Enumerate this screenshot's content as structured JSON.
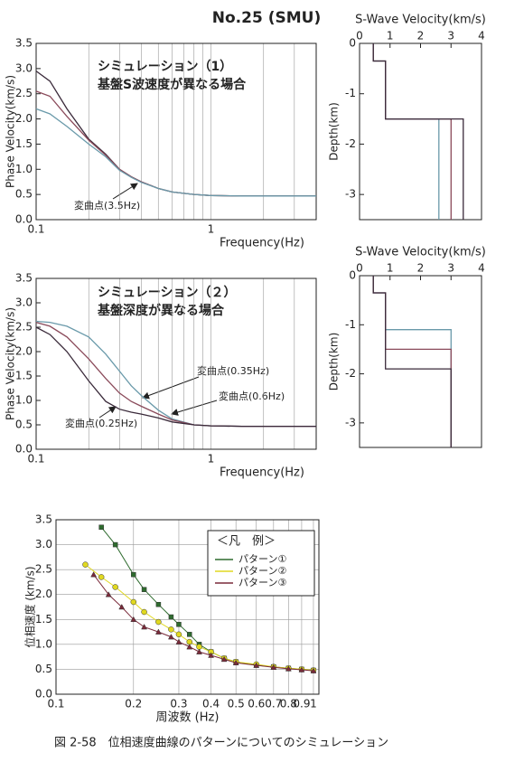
{
  "header": "No.25 (SMU)",
  "caption": "図 2-58　位相速度曲線のパターンについてのシミュレーション",
  "chart_data": [
    {
      "type": "line",
      "log_x": true,
      "grid": "x",
      "x_label": "Frequency(Hz)",
      "y_label": "Phase Velocity(km/s)",
      "annotations": [
        "シミュレーション（1）",
        "基盤S波速度が異なる場合",
        "変曲点(3.5Hz)"
      ],
      "xlim": [
        0.1,
        4
      ],
      "xticks": [
        0.1,
        1
      ],
      "xminor": [
        0.2,
        0.3,
        0.4,
        0.5,
        0.6,
        0.7,
        0.8,
        0.9,
        2,
        3,
        4
      ],
      "ylim": [
        0,
        3.5
      ],
      "yticks": [
        {
          "value": 0,
          "label": "0.0"
        },
        0.5,
        {
          "value": 1,
          "label": "1.0"
        },
        1.5,
        {
          "value": 2,
          "label": "2.0"
        },
        2.5,
        {
          "value": 3,
          "label": "3.0"
        },
        3.5
      ],
      "x": [
        0.1,
        0.12,
        0.15,
        0.2,
        0.25,
        0.3,
        0.35,
        0.4,
        0.5,
        0.6,
        0.8,
        1,
        1.5,
        2,
        3,
        4
      ],
      "series": [
        {
          "color": "#3a2a3a",
          "values": [
            2.95,
            2.75,
            2.2,
            1.6,
            1.3,
            1.0,
            0.85,
            0.75,
            0.62,
            0.55,
            0.5,
            0.48,
            0.47,
            0.47,
            0.47,
            0.47
          ]
        },
        {
          "color": "#8a4a5a",
          "values": [
            2.55,
            2.45,
            2.05,
            1.58,
            1.28,
            1.0,
            0.85,
            0.75,
            0.62,
            0.55,
            0.5,
            0.48,
            0.47,
            0.47,
            0.47,
            0.47
          ]
        },
        {
          "color": "#6a9aaa",
          "values": [
            2.2,
            2.1,
            1.85,
            1.5,
            1.25,
            0.98,
            0.84,
            0.74,
            0.62,
            0.55,
            0.5,
            0.48,
            0.47,
            0.47,
            0.47,
            0.47
          ]
        }
      ]
    },
    {
      "type": "line",
      "x_axis": "top",
      "x_label": "S-Wave Velocity(km/s)",
      "y_label": "Depth(km)",
      "xlim": [
        0,
        4
      ],
      "xticks": [
        0,
        1,
        2,
        3,
        4
      ],
      "ylim": [
        -3.5,
        0
      ],
      "yticks": [
        0,
        -1,
        -2,
        -3
      ],
      "series": [
        {
          "color": "#6a9aaa",
          "x": [
            0.45,
            0.45,
            0.85,
            0.85,
            2.6,
            2.6
          ],
          "values": [
            0,
            -0.35,
            -0.35,
            -1.5,
            -1.5,
            -3.5
          ]
        },
        {
          "color": "#8a4a5a",
          "x": [
            0.45,
            0.45,
            0.85,
            0.85,
            3.0,
            3.0
          ],
          "values": [
            0,
            -0.35,
            -0.35,
            -1.5,
            -1.5,
            -3.5
          ]
        },
        {
          "color": "#3a2a3a",
          "x": [
            0.45,
            0.45,
            0.85,
            0.85,
            3.4,
            3.4
          ],
          "values": [
            0,
            -0.35,
            -0.35,
            -1.5,
            -1.5,
            -3.5
          ]
        }
      ]
    },
    {
      "type": "line",
      "log_x": true,
      "grid": "x",
      "x_label": "Frequency(Hz)",
      "y_label": "Phase Velocity(km/s)",
      "annotations": [
        "シミュレーション（２）",
        "基盤深度が異なる場合",
        "変曲点(0.35Hz)",
        "変曲点(0.6Hz)",
        "変曲点(0.25Hz)"
      ],
      "xlim": [
        0.1,
        4
      ],
      "xticks": [
        0.1,
        1
      ],
      "xminor": [
        0.2,
        0.3,
        0.4,
        0.5,
        0.6,
        0.7,
        0.8,
        0.9,
        2,
        3,
        4
      ],
      "ylim": [
        0,
        3.5
      ],
      "yticks": [
        {
          "value": 0,
          "label": "0.0"
        },
        0.5,
        {
          "value": 1,
          "label": "1.0"
        },
        1.5,
        {
          "value": 2,
          "label": "2.0"
        },
        2.5,
        {
          "value": 3,
          "label": "3.0"
        },
        3.5
      ],
      "x": [
        0.1,
        0.12,
        0.15,
        0.2,
        0.25,
        0.3,
        0.35,
        0.4,
        0.5,
        0.6,
        0.8,
        1,
        1.5,
        2,
        3,
        4
      ],
      "series": [
        {
          "color": "#6a9aaa",
          "values": [
            2.62,
            2.6,
            2.52,
            2.3,
            1.95,
            1.6,
            1.3,
            1.1,
            0.8,
            0.62,
            0.5,
            0.48,
            0.47,
            0.47,
            0.47,
            0.47
          ]
        },
        {
          "color": "#8a4a5a",
          "values": [
            2.6,
            2.52,
            2.3,
            1.85,
            1.45,
            1.15,
            0.98,
            0.88,
            0.72,
            0.6,
            0.5,
            0.48,
            0.47,
            0.47,
            0.47,
            0.47
          ]
        },
        {
          "color": "#3a2a3a",
          "values": [
            2.5,
            2.35,
            2.0,
            1.4,
            0.98,
            0.82,
            0.76,
            0.72,
            0.64,
            0.56,
            0.5,
            0.48,
            0.47,
            0.47,
            0.47,
            0.47
          ]
        }
      ]
    },
    {
      "type": "line",
      "x_axis": "top",
      "x_label": "S-Wave Velocity(km/s)",
      "y_label": "Depth(km)",
      "xlim": [
        0,
        4
      ],
      "xticks": [
        0,
        1,
        2,
        3,
        4
      ],
      "ylim": [
        -3.5,
        0
      ],
      "yticks": [
        0,
        -1,
        -2,
        -3
      ],
      "series": [
        {
          "color": "#6a9aaa",
          "x": [
            0.45,
            0.45,
            0.85,
            0.85,
            3.0,
            3.0
          ],
          "values": [
            0,
            -0.35,
            -0.35,
            -1.1,
            -1.1,
            -3.5
          ]
        },
        {
          "color": "#8a4a5a",
          "x": [
            0.45,
            0.45,
            0.85,
            0.85,
            3.0,
            3.0
          ],
          "values": [
            0,
            -0.35,
            -0.35,
            -1.5,
            -1.5,
            -3.5
          ]
        },
        {
          "color": "#3a2a3a",
          "x": [
            0.45,
            0.45,
            0.85,
            0.85,
            3.0,
            3.0
          ],
          "values": [
            0,
            -0.35,
            -0.35,
            -1.9,
            -1.9,
            -3.5
          ]
        }
      ]
    },
    {
      "type": "line",
      "log_x": true,
      "grid": "both",
      "x_label": "周波数 (Hz)",
      "y_label": "位相速度 (km/s)",
      "legend_title": "＜凡　例＞",
      "xlim": [
        0.1,
        1.05
      ],
      "xticks": [
        0.1,
        0.2,
        0.3,
        0.4,
        0.5,
        0.6,
        0.7,
        0.8,
        0.9,
        1
      ],
      "ylim": [
        0,
        3.5
      ],
      "yticks": [
        {
          "value": 0,
          "label": "0.0"
        },
        0.5,
        {
          "value": 1,
          "label": "1.0"
        },
        1.5,
        {
          "value": 2,
          "label": "2.0"
        },
        2.5,
        {
          "value": 3,
          "label": "3.0"
        },
        3.5
      ],
      "series": [
        {
          "name": "パターン①",
          "color": "#2e6b2e",
          "marker": "square",
          "x": [
            0.15,
            0.17,
            0.2,
            0.22,
            0.25,
            0.28,
            0.3,
            0.33,
            0.36,
            0.4,
            0.45,
            0.5,
            0.6,
            0.7,
            0.8,
            0.9,
            1.0
          ],
          "values": [
            3.35,
            3.0,
            2.4,
            2.1,
            1.8,
            1.55,
            1.4,
            1.2,
            1.0,
            0.85,
            0.72,
            0.65,
            0.58,
            0.55,
            0.52,
            0.5,
            0.48
          ]
        },
        {
          "name": "パターン②",
          "color": "#e0d820",
          "marker": "circle",
          "x": [
            0.13,
            0.15,
            0.17,
            0.2,
            0.22,
            0.25,
            0.28,
            0.3,
            0.33,
            0.36,
            0.4,
            0.45,
            0.5,
            0.6,
            0.7,
            0.8,
            0.9,
            1.0
          ],
          "values": [
            2.6,
            2.35,
            2.15,
            1.85,
            1.65,
            1.45,
            1.3,
            1.2,
            1.05,
            0.95,
            0.85,
            0.72,
            0.65,
            0.6,
            0.55,
            0.52,
            0.5,
            0.48
          ]
        },
        {
          "name": "パターン③",
          "color": "#7a2a3a",
          "marker": "triangle",
          "x": [
            0.14,
            0.16,
            0.18,
            0.2,
            0.22,
            0.25,
            0.28,
            0.3,
            0.33,
            0.36,
            0.4,
            0.45,
            0.5,
            0.6,
            0.7,
            0.8,
            0.9,
            1.0
          ],
          "values": [
            2.4,
            2.0,
            1.75,
            1.5,
            1.35,
            1.25,
            1.15,
            1.05,
            0.95,
            0.85,
            0.78,
            0.7,
            0.63,
            0.58,
            0.54,
            0.51,
            0.49,
            0.47
          ]
        }
      ]
    }
  ]
}
